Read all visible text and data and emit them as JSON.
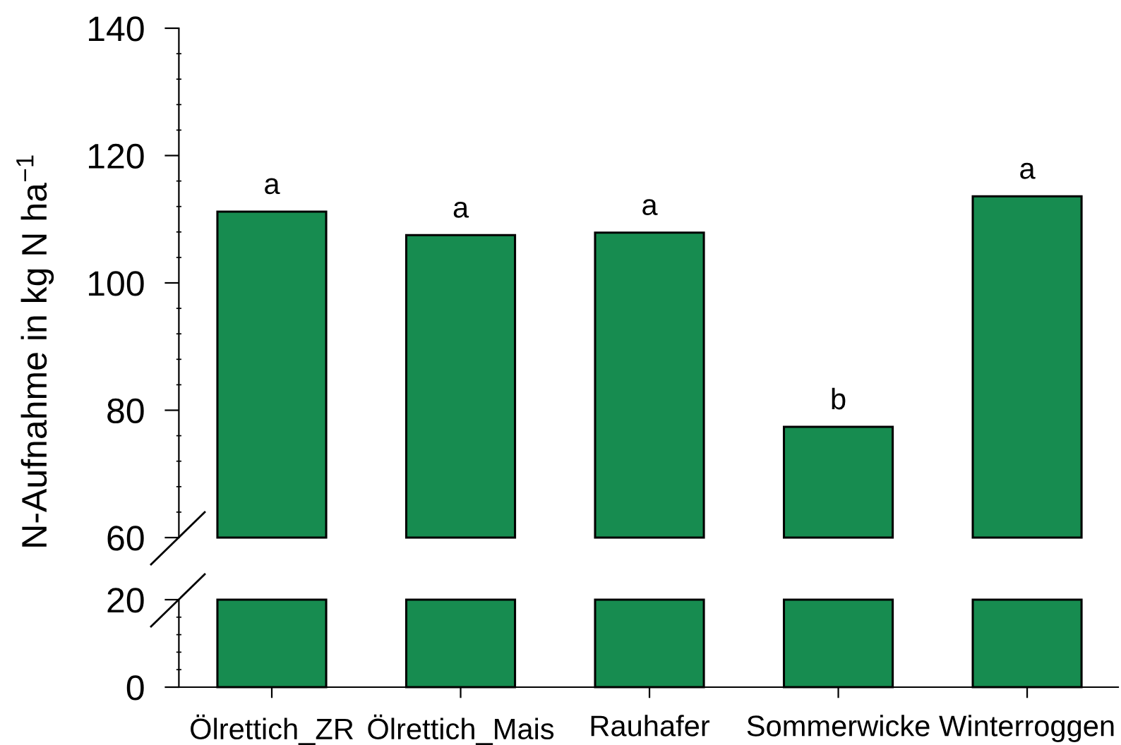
{
  "chart_data": [
    {
      "type": "bar",
      "ylabel": "N-Aufnahme in kg N ha$^{−1}$",
      "categories": [
        "Ölrettich_ZR",
        "Ölrettich_Mais",
        "Rauhafer",
        "Sommerwicke",
        "Winterroggen"
      ],
      "values": [
        111.2,
        107.5,
        107.9,
        77.4,
        113.6
      ],
      "color": "#178c50",
      "ylim": [
        60,
        140
      ],
      "yticks": [
        60,
        {
          "value": 64,
          "label": null
        },
        {
          "value": 68,
          "label": null
        },
        {
          "value": 72,
          "label": null
        },
        {
          "value": 76,
          "label": null
        },
        80,
        {
          "value": 84,
          "label": null
        },
        {
          "value": 88,
          "label": null
        },
        {
          "value": 92,
          "label": null
        },
        {
          "value": 96,
          "label": null
        },
        100,
        {
          "value": 104,
          "label": null
        },
        {
          "value": 108,
          "label": null
        },
        {
          "value": 112,
          "label": null
        },
        {
          "value": 116,
          "label": null
        },
        120,
        {
          "value": 124,
          "label": null
        },
        {
          "value": 128,
          "label": null
        },
        {
          "value": 132,
          "label": null
        },
        {
          "value": 136,
          "label": null
        },
        140
      ],
      "tick_labels": "y",
      "annotations": [
        {
          "text": "a",
          "x": "Ölrettich_ZR",
          "y": 111.2
        },
        {
          "text": "a",
          "x": "Ölrettich_Mais",
          "y": 107.5
        },
        {
          "text": "a",
          "x": "Rauhafer",
          "y": 107.9
        },
        {
          "text": "b",
          "x": "Sommerwicke",
          "y": 77.4
        },
        {
          "text": "a",
          "x": "Winterroggen",
          "y": 113.6
        }
      ]
    },
    {
      "type": "bar",
      "categories": [
        "Ölrettich_ZR",
        "Ölrettich_Mais",
        "Rauhafer",
        "Sommerwicke",
        "Winterroggen"
      ],
      "values": [
        20,
        20,
        20,
        20,
        20
      ],
      "color": "#178c50",
      "ylim": [
        0,
        20
      ],
      "yticks": [
        0,
        {
          "value": 4,
          "label": null
        },
        {
          "value": 8,
          "label": null
        },
        {
          "value": 12,
          "label": null
        },
        {
          "value": 16,
          "label": null
        },
        20
      ]
    }
  ]
}
